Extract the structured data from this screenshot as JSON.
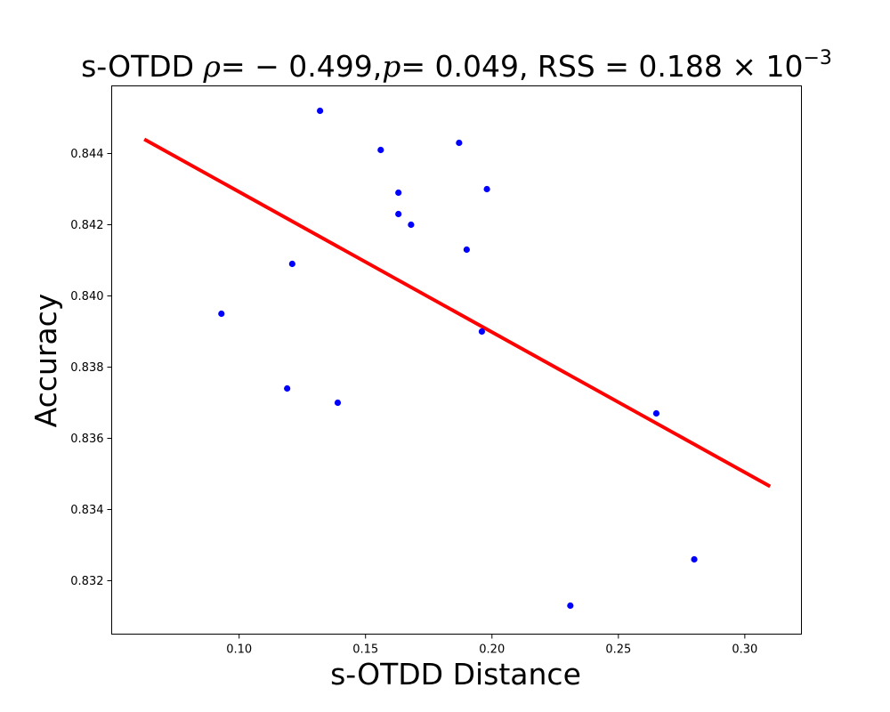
{
  "chart_data": {
    "type": "scatter",
    "title": {
      "prefix": "s-OTDD ",
      "rho_symbol": "ρ",
      "rho_value": "= − 0.499,",
      "p_symbol": "p",
      "p_value": "= 0.049, ",
      "rss_label": "RSS",
      "rss_value": " = 0.188 × 10",
      "rss_exponent": "−3"
    },
    "xlabel": "s-OTDD Distance",
    "ylabel": "Accuracy",
    "xlim": [
      0.0496,
      0.3224
    ],
    "ylim": [
      0.8305,
      0.8459
    ],
    "xticks": [
      0.1,
      0.15,
      0.2,
      0.25,
      0.3
    ],
    "xtick_labels": [
      "0.10",
      "0.15",
      "0.20",
      "0.25",
      "0.30"
    ],
    "yticks": [
      0.832,
      0.834,
      0.836,
      0.838,
      0.84,
      0.842,
      0.844
    ],
    "ytick_labels": [
      "0.832",
      "0.834",
      "0.836",
      "0.838",
      "0.840",
      "0.842",
      "0.844"
    ],
    "grid": false,
    "points": [
      {
        "x": 0.093,
        "y": 0.8395
      },
      {
        "x": 0.119,
        "y": 0.8374
      },
      {
        "x": 0.121,
        "y": 0.8409
      },
      {
        "x": 0.132,
        "y": 0.8452
      },
      {
        "x": 0.139,
        "y": 0.837
      },
      {
        "x": 0.156,
        "y": 0.8441
      },
      {
        "x": 0.163,
        "y": 0.8429
      },
      {
        "x": 0.163,
        "y": 0.8423
      },
      {
        "x": 0.168,
        "y": 0.842
      },
      {
        "x": 0.187,
        "y": 0.8443
      },
      {
        "x": 0.19,
        "y": 0.8413
      },
      {
        "x": 0.196,
        "y": 0.839
      },
      {
        "x": 0.198,
        "y": 0.843
      },
      {
        "x": 0.231,
        "y": 0.8313
      },
      {
        "x": 0.265,
        "y": 0.8367
      },
      {
        "x": 0.28,
        "y": 0.8326
      }
    ],
    "fit_line": {
      "x": [
        0.0625,
        0.31
      ],
      "y": [
        0.8444,
        0.83465
      ]
    },
    "point_color": "#0000ff",
    "line_color": "#ff0000"
  }
}
